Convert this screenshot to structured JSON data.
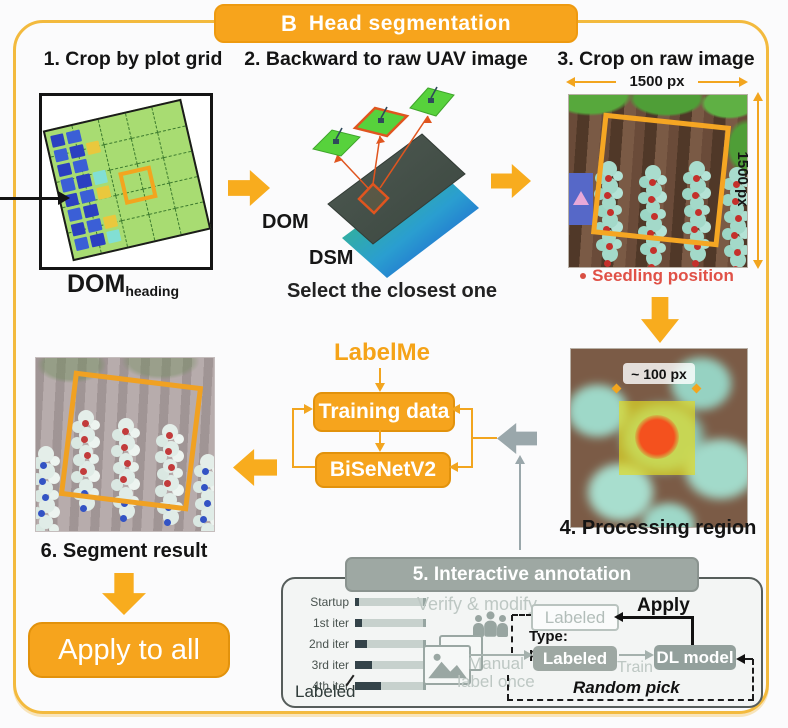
{
  "banner": {
    "prefix": "B",
    "title": "Head segmentation"
  },
  "steps": {
    "step1": {
      "heading": "1. Crop by plot grid",
      "label_main": "DOM",
      "label_sub": "heading"
    },
    "step2": {
      "heading": "2. Backward to raw UAV image",
      "dom": "DOM",
      "dsm": "DSM",
      "caption": "Select the closest one"
    },
    "step3": {
      "heading": "3. Crop on raw image",
      "width_label": "1500 px",
      "height_label": "1500 px",
      "legend": "Seedling position"
    },
    "step4": {
      "caption": "4. Processing region",
      "size_label": "~ 100 px"
    },
    "step5": {
      "heading": "5. Interactive annotation",
      "bars": [
        {
          "label": "Startup",
          "percent": 6
        },
        {
          "label": "1st iter",
          "percent": 11
        },
        {
          "label": "2nd iter",
          "percent": 17
        },
        {
          "label": "3rd iter",
          "percent": 25
        },
        {
          "label": "4th iter",
          "percent": 38
        }
      ],
      "bars_caption": "Labeled",
      "verify_label": "Verify & modify",
      "manual_label": "Manual label once",
      "labeled_top": "Labeled",
      "type_label": "Type: polygon",
      "apply_label": "Apply",
      "labeled_bottom": "Labeled",
      "train_label": "Train",
      "dl_model": "DL model",
      "random_label": "Random pick"
    },
    "step6": {
      "heading": "6. Segment result"
    }
  },
  "flow": {
    "labelme": "LabelMe",
    "training_data": "Training data",
    "bisenet": "BiSeNetV2"
  },
  "apply_all_label": "Apply to all",
  "colors": {
    "accent_orange": "#F6A41D",
    "panel_gray": "#9EA8A3",
    "seedling_red": "#D94F43",
    "grid_green": "#A8DC72",
    "dsm_blue": "#1947D0",
    "dsm_green": "#3BC26A"
  }
}
